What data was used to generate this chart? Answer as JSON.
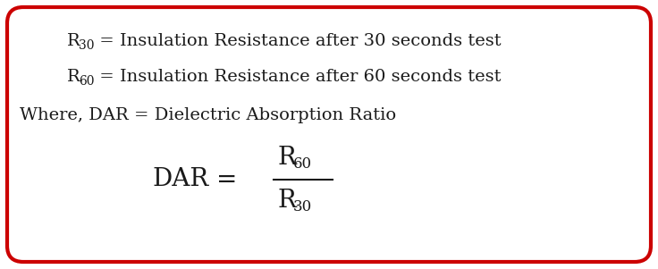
{
  "bg_color": "#ffffff",
  "border_color": "#cc0000",
  "border_linewidth": 3.0,
  "text_color": "#1a1a1a",
  "where_text": "Where, DAR = Dielectric Absorption Ratio",
  "r60_line": " = Insulation Resistance after 60 seconds test",
  "r30_line": " = Insulation Resistance after 30 seconds test",
  "formula_fontsize": 20,
  "sub_fontsize": 14,
  "subscript_fontsize": 10,
  "body_fontsize": 14
}
